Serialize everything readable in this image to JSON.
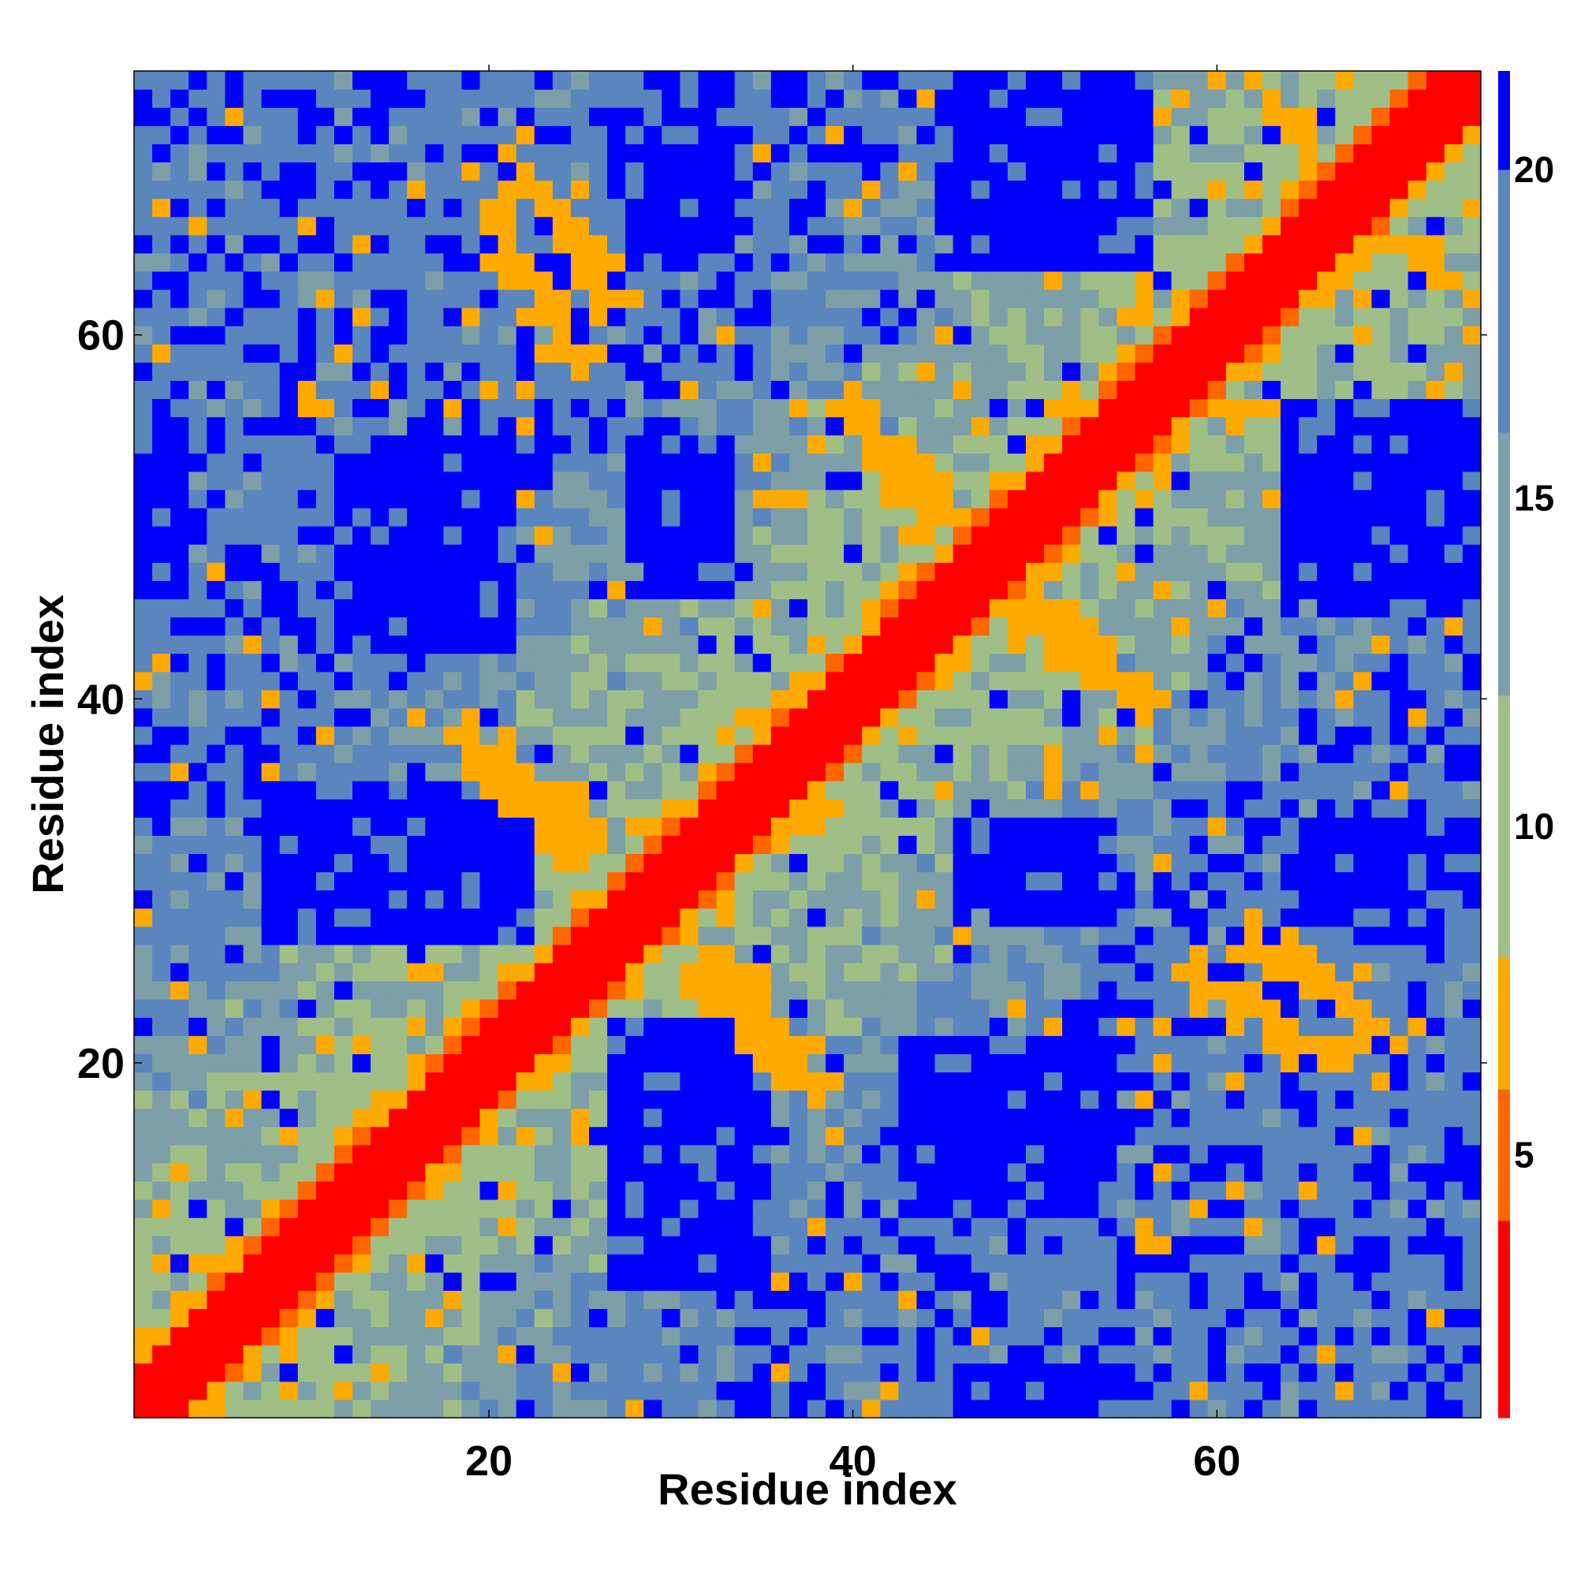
{
  "chart_data": {
    "type": "heatmap",
    "title": "",
    "xlabel": "Residue index",
    "ylabel": "Residue index",
    "n_residues": 74,
    "xlim": [
      1,
      74
    ],
    "ylim": [
      1,
      74
    ],
    "x_ticks": [
      20,
      40,
      60
    ],
    "y_ticks": [
      20,
      40,
      60
    ],
    "colorbar": {
      "range": [
        1,
        21.5
      ],
      "ticks": [
        5,
        10,
        15,
        20
      ],
      "colors": [
        {
          "upto": 4,
          "color": "#ff0000"
        },
        {
          "upto": 6,
          "color": "#ff6600"
        },
        {
          "upto": 8,
          "color": "#ffaa00"
        },
        {
          "upto": 12,
          "color": "#9fbf87"
        },
        {
          "upto": 16,
          "color": "#7d9fa8"
        },
        {
          "upto": 20,
          "color": "#5a85bd"
        },
        {
          "upto": 999,
          "color": "#0000ff"
        }
      ]
    },
    "value_description": "pairwise residue distance map; diagonal near 1, off-diagonal contacts 5-8, far pairs above 20",
    "contacts": [
      {
        "x": [
          19,
          26
        ],
        "y": [
          37,
          33
        ],
        "value": 6
      },
      {
        "x": [
          21,
          27
        ],
        "y": [
          70,
          62
        ],
        "value": 6
      },
      {
        "x": [
          30,
          38
        ],
        "y": [
          26,
          19
        ],
        "value": 6
      },
      {
        "x": [
          58,
          67
        ],
        "y": [
          25,
          20
        ],
        "value": 6
      },
      {
        "x": [
          40,
          46
        ],
        "y": [
          56,
          49
        ],
        "value": 6
      },
      {
        "x": [
          48,
          56
        ],
        "y": [
          45,
          40
        ],
        "value": 6
      },
      {
        "x": [
          62,
          72
        ],
        "y": [
          74,
          64
        ],
        "value": 6
      },
      {
        "x": [
          57,
          62
        ],
        "y": [
          59,
          56
        ],
        "value": 6
      }
    ],
    "far_regions": [
      {
        "x": [
          11,
          21
        ],
        "y": [
          34,
          27
        ],
        "value": 21
      },
      {
        "x": [
          27,
          35
        ],
        "y": [
          22,
          8
        ],
        "value": 21
      },
      {
        "x": [
          46,
          56
        ],
        "y": [
          74,
          64
        ],
        "value": 21
      },
      {
        "x": [
          66,
          74
        ],
        "y": [
          54,
          45
        ],
        "value": 21
      },
      {
        "x": [
          12,
          21
        ],
        "y": [
          54,
          43
        ],
        "value": 21
      },
      {
        "x": [
          47,
          54
        ],
        "y": [
          21,
          13
        ],
        "value": 21
      },
      {
        "x": [
          28,
          33
        ],
        "y": [
          71,
          65
        ],
        "value": 21
      },
      {
        "x": [
          48,
          54
        ],
        "y": [
          33,
          28
        ],
        "value": 21
      },
      {
        "x": [
          68,
          72
        ],
        "y": [
          32,
          27
        ],
        "value": 21
      },
      {
        "x": [
          29,
          33
        ],
        "y": [
          52,
          46
        ],
        "value": 21
      },
      {
        "x": [
          1,
          3
        ],
        "y": [
          54,
          46
        ],
        "value": 21
      },
      {
        "x": [
          13,
          15
        ],
        "y": [
          74,
          72
        ],
        "value": 21
      }
    ]
  }
}
